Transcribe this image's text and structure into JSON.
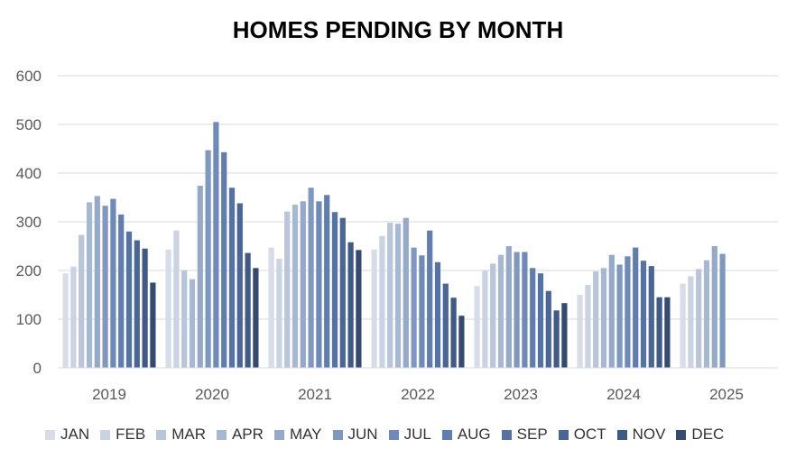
{
  "chart_data": {
    "type": "bar",
    "title": "HOMES PENDING BY MONTH",
    "xlabel": "",
    "ylabel": "",
    "ylim": [
      0,
      600
    ],
    "yticks": [
      0,
      100,
      200,
      300,
      400,
      500,
      600
    ],
    "grid": true,
    "legend_position": "bottom",
    "categories": [
      "2019",
      "2020",
      "2021",
      "2022",
      "2023",
      "2024",
      "2025"
    ],
    "series": [
      {
        "name": "JAN",
        "color": "#d6dde8",
        "values": [
          194,
          243,
          247,
          243,
          168,
          150,
          173
        ]
      },
      {
        "name": "FEB",
        "color": "#c9d3e3",
        "values": [
          208,
          282,
          224,
          271,
          200,
          170,
          188
        ]
      },
      {
        "name": "MAR",
        "color": "#b8c5da",
        "values": [
          273,
          200,
          321,
          298,
          214,
          198,
          203
        ]
      },
      {
        "name": "APR",
        "color": "#a7b8d2",
        "values": [
          340,
          182,
          335,
          296,
          232,
          205,
          221
        ]
      },
      {
        "name": "MAY",
        "color": "#94a9cb",
        "values": [
          353,
          374,
          342,
          308,
          250,
          232,
          250
        ]
      },
      {
        "name": "JUN",
        "color": "#7f98c3",
        "values": [
          333,
          447,
          370,
          247,
          238,
          212,
          234
        ]
      },
      {
        "name": "JUL",
        "color": "#6e8abc",
        "values": [
          347,
          505,
          342,
          231,
          238,
          229,
          null
        ]
      },
      {
        "name": "AUG",
        "color": "#5f7db2",
        "values": [
          315,
          443,
          355,
          282,
          205,
          247,
          null
        ]
      },
      {
        "name": "SEP",
        "color": "#5472a6",
        "values": [
          280,
          370,
          320,
          217,
          194,
          220,
          null
        ]
      },
      {
        "name": "OCT",
        "color": "#49659a",
        "values": [
          262,
          338,
          308,
          173,
          158,
          209,
          null
        ]
      },
      {
        "name": "NOV",
        "color": "#3f5988",
        "values": [
          245,
          236,
          258,
          144,
          118,
          145,
          null
        ]
      },
      {
        "name": "DEC",
        "color": "#344a73",
        "values": [
          175,
          205,
          242,
          107,
          133,
          145,
          null
        ]
      }
    ]
  },
  "colors": {
    "gridline": "#d9d9d9",
    "axis_text": "#595959",
    "title": "#000000"
  }
}
